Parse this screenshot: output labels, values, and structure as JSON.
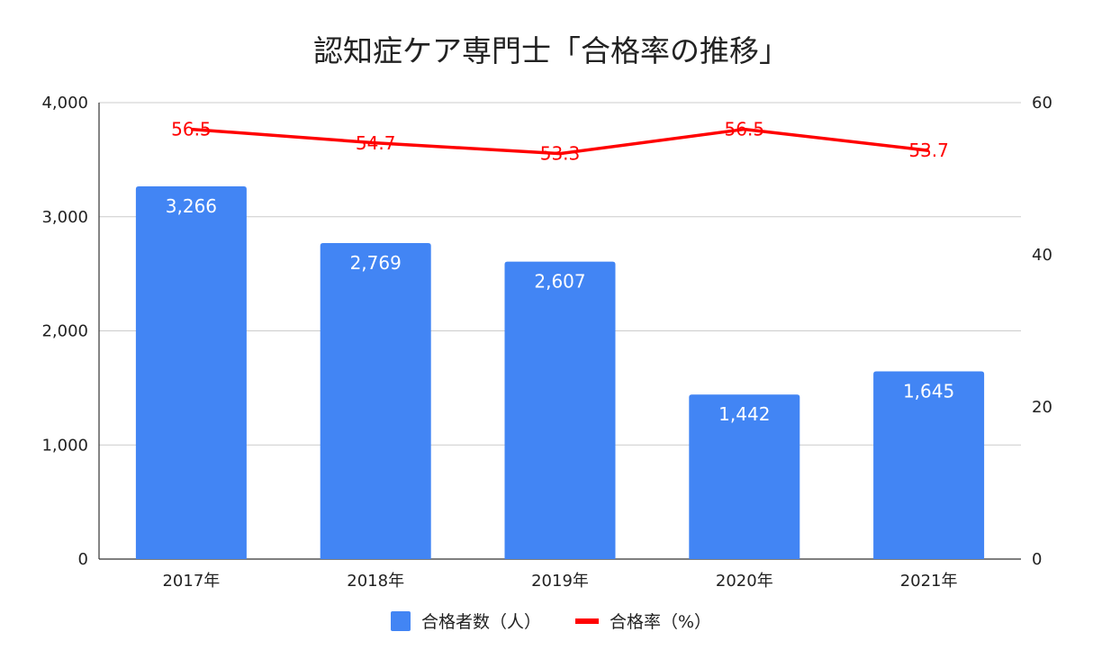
{
  "chart_data": {
    "type": "bar",
    "title": "認知症ケア専門士「合格率の推移」",
    "categories": [
      "2017年",
      "2018年",
      "2019年",
      "2020年",
      "2021年"
    ],
    "series": [
      {
        "name": "合格者数（人）",
        "type": "bar",
        "axis": "left",
        "color": "#4285f4",
        "values": [
          3266,
          2769,
          2607,
          1442,
          1645
        ],
        "labels": [
          "3,266",
          "2,769",
          "2,607",
          "1,442",
          "1,645"
        ]
      },
      {
        "name": "合格率（%）",
        "type": "line",
        "axis": "right",
        "color": "#ff0000",
        "values": [
          56.5,
          54.7,
          53.3,
          56.5,
          53.7
        ],
        "labels": [
          "56.5",
          "54.7",
          "53.3",
          "56.5",
          "53.7"
        ]
      }
    ],
    "y_left": {
      "ylim": [
        0,
        4000
      ],
      "ticks": [
        0,
        1000,
        2000,
        3000,
        4000
      ],
      "tick_labels": [
        "0",
        "1,000",
        "2,000",
        "3,000",
        "4,000"
      ]
    },
    "y_right": {
      "ylim": [
        0,
        60
      ],
      "ticks": [
        0,
        20,
        40,
        60
      ],
      "tick_labels": [
        "0",
        "20",
        "40",
        "60"
      ]
    },
    "grid": true,
    "legend_position": "bottom"
  }
}
